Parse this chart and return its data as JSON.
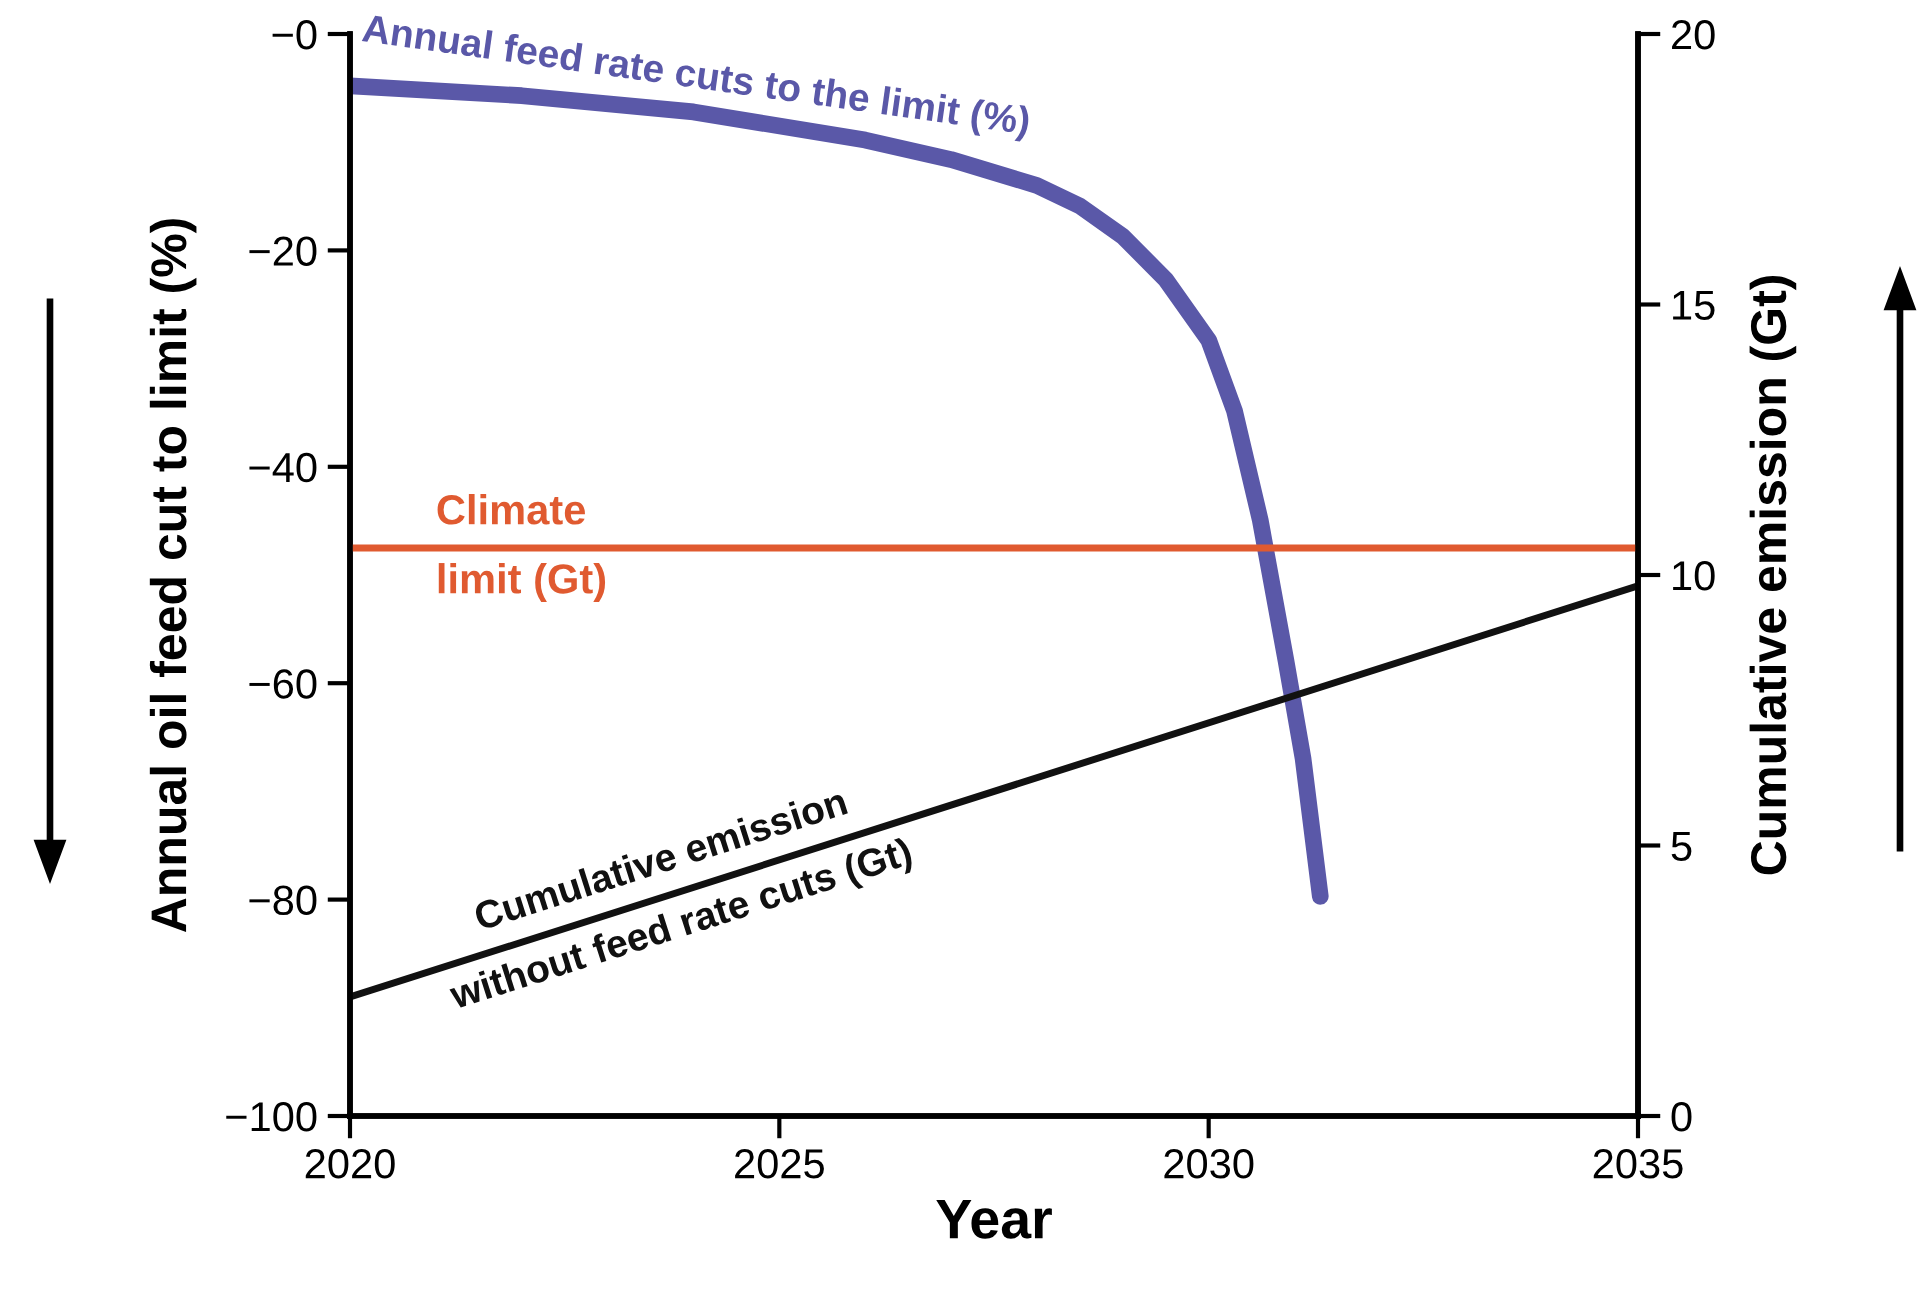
{
  "chart_data": {
    "type": "line",
    "xlabel": "Year",
    "ylabel": "Annual oil feed cut to limit (%)",
    "y2label": "Cumulative emission (Gt)",
    "series": [
      {
        "name": "Annual feed rate cuts to the limit (%)",
        "color": "#5a58a8",
        "x": [
          2020,
          2022,
          2024,
          2026,
          2027,
          2028,
          2028.5,
          2029,
          2029.5,
          2030,
          2030.3,
          2030.6,
          2030.9,
          2031.1,
          2031.3
        ],
        "values": [
          -4.8,
          -5.7,
          -7.2,
          -9.8,
          -11.6,
          -14,
          -15.9,
          -18.7,
          -22.7,
          -28.3,
          -34.8,
          -44.9,
          -57.9,
          -67,
          -79.7
        ]
      },
      {
        "name": "Cumulative emission\nwithout feed rate cuts (Gt)",
        "color": "#111111",
        "axis": "y2",
        "x": [
          2020,
          2035
        ],
        "values": [
          2.2,
          9.8
        ]
      }
    ],
    "ref_lines": [
      {
        "axis": "y2",
        "value": 10.5,
        "label": "Climate\nlimit (Gt)",
        "color": "#e05a30"
      }
    ],
    "xlim": [
      2020,
      2035
    ],
    "xticks": [
      2020,
      2025,
      2030,
      2035
    ],
    "ylim": [
      -100,
      0
    ],
    "yticks": [
      {
        "value": -100,
        "label": "−100"
      },
      {
        "value": -80,
        "label": "−80"
      },
      {
        "value": -60,
        "label": "−60"
      },
      {
        "value": -40,
        "label": "−40"
      },
      {
        "value": -20,
        "label": "−20"
      },
      {
        "value": 0,
        "label": "−0"
      }
    ],
    "y2lim": [
      0,
      20
    ],
    "y2ticks": [
      0,
      5,
      10,
      15,
      20
    ],
    "grid": false,
    "legend": false,
    "marker": "none",
    "line_style": "solid"
  }
}
